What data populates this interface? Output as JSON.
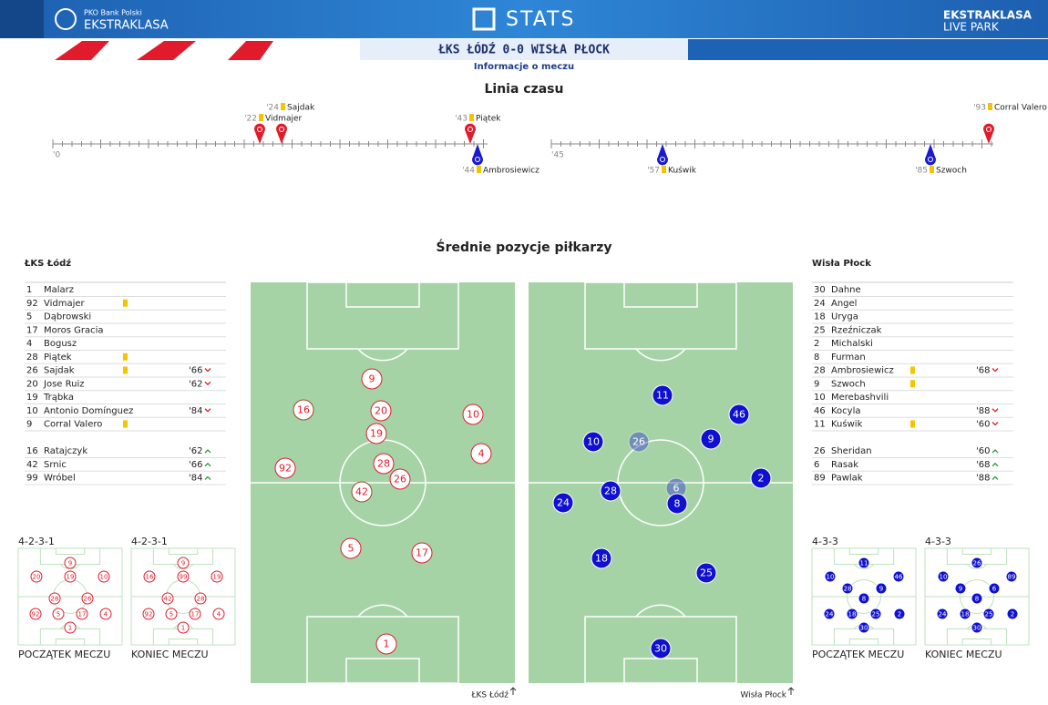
{
  "header": {
    "bank": "PKO Bank Polski",
    "league": "EKSTRAKLASA",
    "stats": "STATS",
    "park_top": "EKSTRAKLASA",
    "park_bottom": "LIVE PARK"
  },
  "match": {
    "title": "ŁKS ŁÓDŹ 0-0 WISŁA PŁOCK",
    "subtitle": "Informacje o meczu"
  },
  "timeline": {
    "title": "Linia czasu",
    "halves": [
      "'0",
      "'45"
    ],
    "home_events": [
      {
        "minute": "'22",
        "player": "Vidmajer"
      },
      {
        "minute": "'24",
        "player": "Sajdak"
      },
      {
        "minute": "'43",
        "player": "Piątek"
      },
      {
        "minute": "'93",
        "player": "Corral Valero"
      }
    ],
    "away_events": [
      {
        "minute": "'44",
        "player": "Ambrosiewicz"
      },
      {
        "minute": "'57",
        "player": "Kuświk"
      },
      {
        "minute": "'85",
        "player": "Szwoch"
      }
    ]
  },
  "positions": {
    "title": "Średnie pozycje piłkarzy"
  },
  "home": {
    "name": "ŁKS Łódź",
    "footer": "ŁKS Łódź",
    "players": [
      {
        "number": "1",
        "name": "Malarz"
      },
      {
        "number": "92",
        "name": "Vidmajer",
        "card": true
      },
      {
        "number": "5",
        "name": "Dąbrowski"
      },
      {
        "number": "17",
        "name": "Moros Gracia"
      },
      {
        "number": "4",
        "name": "Bogusz"
      },
      {
        "number": "28",
        "name": "Piątek",
        "card": true
      },
      {
        "number": "26",
        "name": "Sajdak",
        "card": true,
        "sub": "'66"
      },
      {
        "number": "20",
        "name": "Jose Ruiz",
        "sub": "'62"
      },
      {
        "number": "19",
        "name": "Trąbka"
      },
      {
        "number": "10",
        "name": "Antonio Domínguez",
        "sub": "'84"
      },
      {
        "number": "9",
        "name": "Corral Valero",
        "card": true
      }
    ],
    "subs": [
      {
        "number": "16",
        "name": "Ratajczyk",
        "sub": "'62"
      },
      {
        "number": "42",
        "name": "Srnic",
        "sub": "'66"
      },
      {
        "number": "99",
        "name": "Wróbel",
        "sub": "'84"
      }
    ],
    "pitch": [
      "9",
      "16",
      "20",
      "10",
      "19",
      "4",
      "92",
      "28",
      "26",
      "42",
      "5",
      "17",
      "1"
    ],
    "formations": [
      {
        "name": "4-2-3-1",
        "label": "POCZĄTEK MECZU",
        "players": [
          "9",
          "19",
          "20",
          "10",
          "28",
          "26",
          "92",
          "5",
          "17",
          "4",
          "1"
        ]
      },
      {
        "name": "4-2-3-1",
        "label": "KONIEC MECZU",
        "players": [
          "9",
          "99",
          "16",
          "19",
          "42",
          "28",
          "92",
          "5",
          "17",
          "4",
          "1"
        ]
      }
    ]
  },
  "away": {
    "name": "Wisła Płock",
    "footer": "Wisła Płock",
    "players": [
      {
        "number": "30",
        "name": "Dahne"
      },
      {
        "number": "24",
        "name": "Angel"
      },
      {
        "number": "18",
        "name": "Uryga"
      },
      {
        "number": "25",
        "name": "Rzeźniczak"
      },
      {
        "number": "2",
        "name": "Michalski"
      },
      {
        "number": "8",
        "name": "Furman"
      },
      {
        "number": "28",
        "name": "Ambrosiewicz",
        "card": true,
        "sub": "'68"
      },
      {
        "number": "9",
        "name": "Szwoch",
        "card": true
      },
      {
        "number": "10",
        "name": "Merebashvili"
      },
      {
        "number": "46",
        "name": "Kocyla",
        "sub": "'88"
      },
      {
        "number": "11",
        "name": "Kuświk",
        "card": true,
        "sub": "'60"
      }
    ],
    "subs": [
      {
        "number": "26",
        "name": "Sheridan",
        "sub": "'60"
      },
      {
        "number": "6",
        "name": "Rasak",
        "sub": "'68"
      },
      {
        "number": "89",
        "name": "Pawlak",
        "sub": "'88"
      }
    ],
    "pitch": [
      "11",
      "46",
      "10",
      "26",
      "9",
      "2",
      "6",
      "24",
      "28",
      "8",
      "18",
      "25",
      "30"
    ],
    "formations": [
      {
        "name": "4-3-3",
        "label": "POCZĄTEK MECZU",
        "players": [
          "11",
          "10",
          "46",
          "28",
          "9",
          "8",
          "24",
          "18",
          "25",
          "2",
          "30"
        ]
      },
      {
        "name": "4-3-3",
        "label": "KONIEC MECZU",
        "players": [
          "26",
          "10",
          "89",
          "9",
          "6",
          "8",
          "24",
          "18",
          "25",
          "2",
          "30"
        ]
      }
    ]
  }
}
